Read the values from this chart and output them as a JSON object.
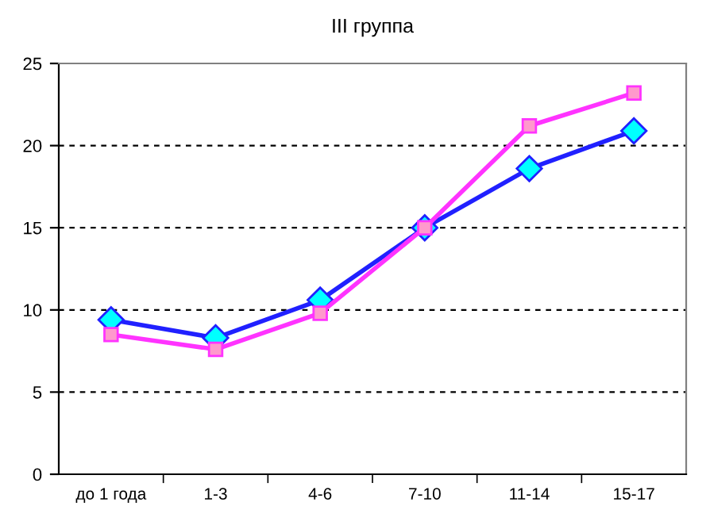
{
  "chart_data": {
    "type": "line",
    "title": "III группа",
    "categories": [
      "до 1 года",
      "1-3",
      "4-6",
      "7-10",
      "11-14",
      "15-17"
    ],
    "series": [
      {
        "color": "#2020ff",
        "marker": "diamond",
        "values": [
          9.4,
          8.3,
          10.6,
          15.0,
          18.6,
          20.9
        ]
      },
      {
        "color": "#ff33ff",
        "marker": "square",
        "values": [
          8.5,
          7.6,
          9.8,
          15.0,
          21.2,
          23.2
        ]
      }
    ],
    "ylim": [
      0,
      25
    ],
    "yticks": [
      0,
      5,
      10,
      15,
      20,
      25
    ],
    "grid": "y",
    "line_style": "solid",
    "legend": false
  }
}
